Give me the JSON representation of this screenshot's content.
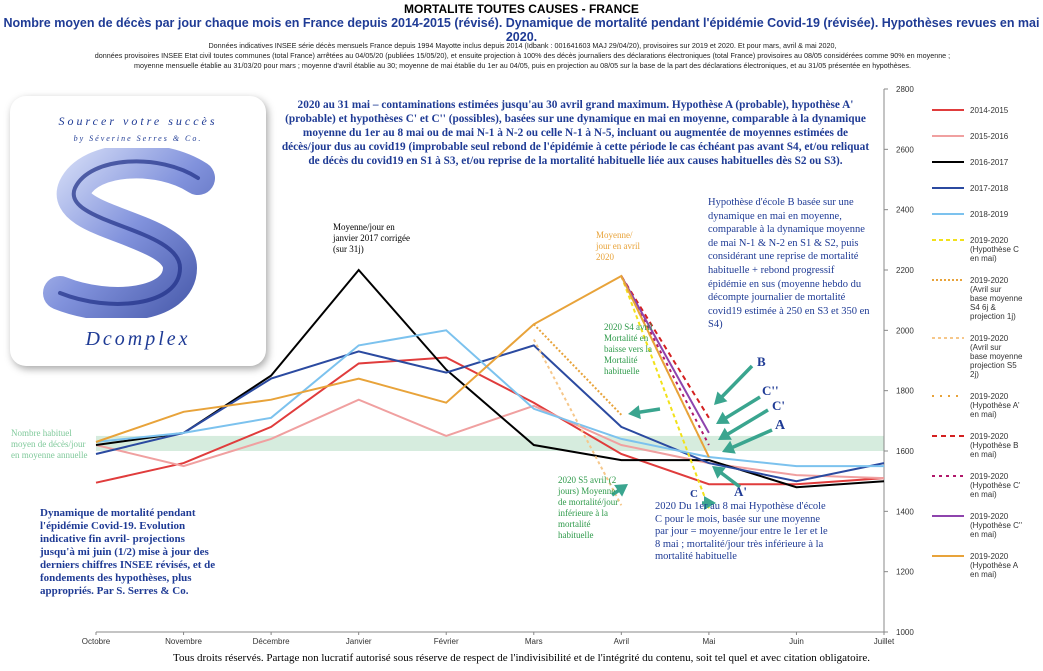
{
  "header": {
    "title": "MORTALITE TOUTES CAUSES - FRANCE",
    "subtitle": "Nombre moyen de décès par jour chaque mois en France depuis 2014-2015 (révisé). Dynamique de mortalité pendant l'épidémie Covid-19 (révisée). Hypothèses revues en mai 2020.",
    "note_lines": [
      "Données indicatives INSEE série décès mensuels France depuis 1994 Mayotte inclus depuis 2014 (Idbank : 001641603 MAJ 29/04/20), provisoires sur 2019 et 2020. Et pour mars, avril & mai 2020,",
      "données provisoires INSEE Etat civil toutes communes (total France) arrêtées au 04/05/20 (publiées 15/05/20), et ensuite projection à 100% des décès journaliers des déclarations électroniques (total France) provisoires au 08/05 considérées comme 90% en moyenne ;",
      "moyenne mensuelle établie au 31/03/20 pour mars ; moyenne d'avril établie au 30; moyenne de mai établie du 1er au 04/05, puis en projection au 08/05 sur la base de la part des déclarations électroniques, et au 31/05 présentée en hypothèses."
    ]
  },
  "logo": {
    "top_text": "Sourcer votre succès",
    "sub_text": "by Séverine Serres & Co.",
    "bottom_text": "Dcomplex"
  },
  "annotations": {
    "hypotheses_box": "2020 au 31 mai – contaminations estimées jusqu'au 30 avril grand maximum. Hypothèse A (probable), hypothèse A' (probable) et hypothèses C' et C'' (possibles), basées sur une dynamique en mai en moyenne, comparable à la dynamique moyenne du 1er au 8 mai ou de mai N-1 à N-2 ou celle N-1 à N-5, incluant ou augmentée de moyennes estimées de décès/jour dus au covid19 (improbable seul rebond de l'épidémie à cette période le cas échéant pas avant S4, et/ou reliquat de décès du covid19 en S1 à S3, et/ou reprise de la mortalité habituelle liée aux causes habituelles dès S2 ou S3).",
    "hyp_b": "Hypothèse d'école B basée sur une dynamique en mai en moyenne, comparable à la dynamique moyenne de mai N-1 & N-2 en S1 & S2, puis considérant une reprise de mortalité habituelle + rebond progressif épidémie en sus (moyenne hebdo du décompte journalier de mortalité covid19 estimée à 250 en S3 et 350 en S4)",
    "jan2017": "Moyenne/jour en janvier 2017 corrigée (sur 31j)",
    "apr2020": "Moyenne/ jour en avril 2020",
    "s4avril": "2020 S4 avril Mortalité en baisse vers la Mortalité habituelle",
    "s5avril": "2020 S5 avril (2 jours) Moyenne de mortalité/jour inférieure à la mortalité habituelle",
    "hyp_c": "2020 Du 1er au 8 mai Hypothèse d'école C pour le mois, basée sur une moyenne par jour = moyenne/jour entre le 1er et le 8 mai ; mortalité/jour très inférieure à la mortalité habituelle",
    "habituel": "Nombre habituel moyen de décès/jour en moyenne annuelle",
    "dynamique": "Dynamique de mortalité pendant l'épidémie Covid-19. Evolution indicative fin avril- projections jusqu'à mi juin (1/2) mise à jour des derniers chiffres INSEE révisés, et de fondements des hypothèses, plus appropriés. Par S. Serres & Co.",
    "labels": {
      "B": "B",
      "Cpp": "C''",
      "Cp": "C'",
      "A": "A",
      "Ap": "A'",
      "C": "C"
    }
  },
  "footer": "Tous droits réservés. Partage non lucratif autorisé sous réserve de respect de l'indivisibilité et de l'intégrité du contenu, soit tel quel et avec citation obligatoire.",
  "chart_data": {
    "type": "line",
    "categories": [
      "Octobre",
      "Novembre",
      "Décembre",
      "Janvier",
      "Février",
      "Mars",
      "Avril",
      "Mai",
      "Juin",
      "Juillet"
    ],
    "ylim": [
      1000,
      2800
    ],
    "yticks": [
      1000,
      1200,
      1400,
      1600,
      1800,
      2000,
      2200,
      2400,
      2600,
      2800
    ],
    "habitual_band": [
      1600,
      1650
    ],
    "series": [
      {
        "name": "2014-2015",
        "color": "#e03c3c",
        "dash": "",
        "values": [
          1495,
          1560,
          1680,
          1890,
          1910,
          1760,
          1590,
          1490,
          1490,
          1510
        ]
      },
      {
        "name": "2015-2016",
        "color": "#f0a0a0",
        "dash": "",
        "values": [
          1620,
          1550,
          1640,
          1770,
          1650,
          1750,
          1620,
          1560,
          1520,
          1510
        ]
      },
      {
        "name": "2016-2017",
        "color": "#000000",
        "dash": "",
        "values": [
          1620,
          1660,
          1850,
          2200,
          1870,
          1620,
          1570,
          1570,
          1480,
          1500
        ]
      },
      {
        "name": "2017-2018",
        "color": "#2b4aa0",
        "dash": "",
        "values": [
          1590,
          1660,
          1840,
          1930,
          1860,
          1950,
          1680,
          1560,
          1500,
          1560
        ]
      },
      {
        "name": "2018-2019",
        "color": "#7cc2ee",
        "dash": "",
        "values": [
          1630,
          1660,
          1710,
          1950,
          2000,
          1740,
          1640,
          1580,
          1550,
          1550
        ]
      },
      {
        "name": "2019-2020 (Hypothèse C en mai)",
        "color": "#f2e11a",
        "dash": "4,3",
        "values": [
          null,
          null,
          null,
          null,
          null,
          null,
          2180,
          1410,
          null,
          null
        ]
      },
      {
        "name": "2019-2020 (Avril sur base moyenne S4 6j & projection 1j)",
        "color": "#e8a33a",
        "dash": "2,2",
        "values": [
          null,
          null,
          null,
          null,
          null,
          2020,
          1720,
          null,
          null,
          null
        ]
      },
      {
        "name": "2019-2020 (Avril sur base moyenne projection S5 2j)",
        "color": "#f6c78a",
        "dash": "3,3",
        "values": [
          null,
          null,
          null,
          null,
          null,
          1970,
          1420,
          null,
          null,
          null
        ]
      },
      {
        "name": "2019-2020 (Hypothèse A' en mai)",
        "color": "#e8a33a",
        "dash": "2,6",
        "values": [
          null,
          null,
          null,
          null,
          null,
          null,
          2180,
          1580,
          null,
          null
        ]
      },
      {
        "name": "2019-2020 (Hypothèse B en mai)",
        "color": "#d42020",
        "dash": "5,4",
        "values": [
          null,
          null,
          null,
          null,
          null,
          null,
          2180,
          1710,
          null,
          null
        ]
      },
      {
        "name": "2019-2020 (Hypothèse C' en mai)",
        "color": "#b0186a",
        "dash": "3,4",
        "values": [
          null,
          null,
          null,
          null,
          null,
          null,
          2180,
          1620,
          null,
          null
        ]
      },
      {
        "name": "2019-2020 (Hypothèse C'' en mai)",
        "color": "#8e44ad",
        "dash": "",
        "values": [
          null,
          null,
          null,
          null,
          null,
          null,
          2180,
          1660,
          null,
          null
        ]
      },
      {
        "name": "2019-2020 (Hypothèse A en mai)",
        "color": "#e8a33a",
        "dash": "",
        "values": [
          1630,
          1730,
          1770,
          1840,
          1760,
          2020,
          2180,
          1580,
          null,
          null
        ]
      }
    ],
    "grid": false,
    "legend_position": "right"
  }
}
